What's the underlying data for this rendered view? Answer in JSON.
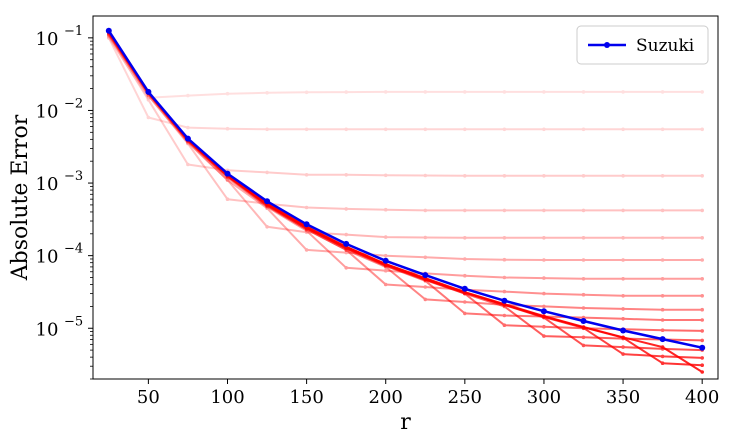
{
  "chart_data": {
    "type": "line",
    "xlabel": "r",
    "ylabel": "Absolute Error",
    "x_ticks": [
      50,
      100,
      150,
      200,
      250,
      300,
      350,
      400
    ],
    "y_scale": "log",
    "y_ticks": [
      {
        "value": 1e-05,
        "base": "10",
        "exp": "−5"
      },
      {
        "value": 0.0001,
        "base": "10",
        "exp": "−4"
      },
      {
        "value": 0.001,
        "base": "10",
        "exp": "−3"
      },
      {
        "value": 0.01,
        "base": "10",
        "exp": "−2"
      },
      {
        "value": 0.1,
        "base": "10",
        "exp": "−1"
      }
    ],
    "xlim": [
      15,
      410
    ],
    "ylim": [
      2e-06,
      0.2
    ],
    "grid": false,
    "legend_position": "top-right",
    "x": [
      25,
      50,
      75,
      100,
      125,
      150,
      175,
      200,
      225,
      250,
      275,
      300,
      325,
      350,
      375,
      400
    ],
    "suzuki": {
      "name": "Suzuki",
      "color": "#0000ee",
      "values": [
        0.125,
        0.018,
        0.0041,
        0.00135,
        0.00056,
        0.00027,
        0.000145,
        8.5e-05,
        5.4e-05,
        3.5e-05,
        2.4e-05,
        1.72e-05,
        1.26e-05,
        9.3e-06,
        7.1e-06,
        5.4e-06
      ]
    },
    "faint_series": [
      {
        "color": "#ff0000",
        "opacity": 0.12,
        "values": [
          0.1,
          0.015,
          0.016,
          0.017,
          0.0175,
          0.0178,
          0.0179,
          0.018,
          0.018,
          0.018,
          0.018,
          0.018,
          0.018,
          0.018,
          0.018,
          0.018
        ]
      },
      {
        "color": "#ff0000",
        "opacity": 0.16,
        "values": [
          0.1,
          0.008,
          0.0058,
          0.0056,
          0.0055,
          0.0055,
          0.0055,
          0.0055,
          0.0055,
          0.0055,
          0.0055,
          0.0055,
          0.0055,
          0.0055,
          0.0055,
          0.0055
        ]
      },
      {
        "color": "#ff0000",
        "opacity": 0.2,
        "values": [
          0.105,
          0.014,
          0.0018,
          0.0015,
          0.0014,
          0.0013,
          0.0013,
          0.00128,
          0.00127,
          0.00126,
          0.00126,
          0.00126,
          0.00126,
          0.00126,
          0.00126,
          0.00126
        ]
      },
      {
        "color": "#ff0000",
        "opacity": 0.24,
        "values": [
          0.108,
          0.016,
          0.0035,
          0.0006,
          0.00052,
          0.00046,
          0.00044,
          0.00043,
          0.00042,
          0.00042,
          0.00042,
          0.00042,
          0.00042,
          0.00042,
          0.00042,
          0.00042
        ]
      },
      {
        "color": "#ff0000",
        "opacity": 0.28,
        "values": [
          0.11,
          0.016,
          0.0036,
          0.0011,
          0.00025,
          0.00021,
          0.000195,
          0.00018,
          0.000178,
          0.000176,
          0.000176,
          0.000176,
          0.000176,
          0.000176,
          0.000176,
          0.000176
        ]
      },
      {
        "color": "#ff0000",
        "opacity": 0.33,
        "values": [
          0.112,
          0.017,
          0.0037,
          0.0011,
          0.00045,
          0.00012,
          0.00011,
          0.0001,
          9.5e-05,
          9e-05,
          8.8e-05,
          8.7e-05,
          8.7e-05,
          8.7e-05,
          8.7e-05,
          8.7e-05
        ]
      },
      {
        "color": "#ff0000",
        "opacity": 0.38,
        "values": [
          0.114,
          0.017,
          0.0038,
          0.0012,
          0.00047,
          0.00022,
          6.8e-05,
          6.2e-05,
          5.7e-05,
          5.3e-05,
          5e-05,
          4.9e-05,
          4.8e-05,
          4.8e-05,
          4.8e-05,
          4.8e-05
        ]
      },
      {
        "color": "#ff0000",
        "opacity": 0.43,
        "values": [
          0.116,
          0.0172,
          0.0038,
          0.00122,
          0.00048,
          0.00023,
          0.00012,
          4e-05,
          3.7e-05,
          3.4e-05,
          3.2e-05,
          3e-05,
          2.9e-05,
          2.8e-05,
          2.8e-05,
          2.8e-05
        ]
      },
      {
        "color": "#ff0000",
        "opacity": 0.48,
        "values": [
          0.118,
          0.0174,
          0.0039,
          0.00124,
          0.00049,
          0.00023,
          0.00012,
          7e-05,
          2.5e-05,
          2.3e-05,
          2.1e-05,
          2e-05,
          1.9e-05,
          1.85e-05,
          1.8e-05,
          1.8e-05
        ]
      },
      {
        "color": "#ff0000",
        "opacity": 0.53,
        "values": [
          0.119,
          0.0175,
          0.0039,
          0.00125,
          0.0005,
          0.00024,
          0.000125,
          7.2e-05,
          4.5e-05,
          1.6e-05,
          1.5e-05,
          1.45e-05,
          1.4e-05,
          1.35e-05,
          1.3e-05,
          1.3e-05
        ]
      },
      {
        "color": "#ff0000",
        "opacity": 0.58,
        "values": [
          0.12,
          0.0176,
          0.0039,
          0.00126,
          0.0005,
          0.00024,
          0.000127,
          7.3e-05,
          4.6e-05,
          3e-05,
          1.1e-05,
          1.05e-05,
          1e-05,
          9.7e-06,
          9.4e-06,
          9.2e-06
        ]
      },
      {
        "color": "#ff0000",
        "opacity": 0.63,
        "values": [
          0.121,
          0.0177,
          0.004,
          0.00127,
          0.00051,
          0.00024,
          0.000128,
          7.4e-05,
          4.7e-05,
          3e-05,
          2e-05,
          7.8e-06,
          7.5e-06,
          7.2e-06,
          7e-06,
          6.8e-06
        ]
      },
      {
        "color": "#ff0000",
        "opacity": 0.68,
        "values": [
          0.122,
          0.0178,
          0.004,
          0.00128,
          0.00051,
          0.000245,
          0.00013,
          7.5e-05,
          4.7e-05,
          3.1e-05,
          2.1e-05,
          1.4e-05,
          5.8e-06,
          5.5e-06,
          5.2e-06,
          5e-06
        ]
      },
      {
        "color": "#ff0000",
        "opacity": 0.74,
        "values": [
          0.123,
          0.0178,
          0.004,
          0.00129,
          0.00052,
          0.000245,
          0.000131,
          7.6e-05,
          4.8e-05,
          3.1e-05,
          2.1e-05,
          1.43e-05,
          1.01e-05,
          4.4e-06,
          4.1e-06,
          3.9e-06
        ]
      },
      {
        "color": "#ff0000",
        "opacity": 0.8,
        "values": [
          0.123,
          0.0179,
          0.004,
          0.0013,
          0.00052,
          0.00025,
          0.000132,
          7.6e-05,
          4.8e-05,
          3.1e-05,
          2.12e-05,
          1.45e-05,
          1.03e-05,
          7.4e-06,
          3.3e-06,
          3.1e-06
        ]
      },
      {
        "color": "#ff0000",
        "opacity": 0.86,
        "values": [
          0.124,
          0.0179,
          0.004,
          0.0013,
          0.00052,
          0.00025,
          0.000133,
          7.7e-05,
          4.9e-05,
          3.15e-05,
          2.15e-05,
          1.47e-05,
          1.04e-05,
          7.5e-06,
          5.5e-06,
          2.5e-06
        ]
      }
    ]
  }
}
